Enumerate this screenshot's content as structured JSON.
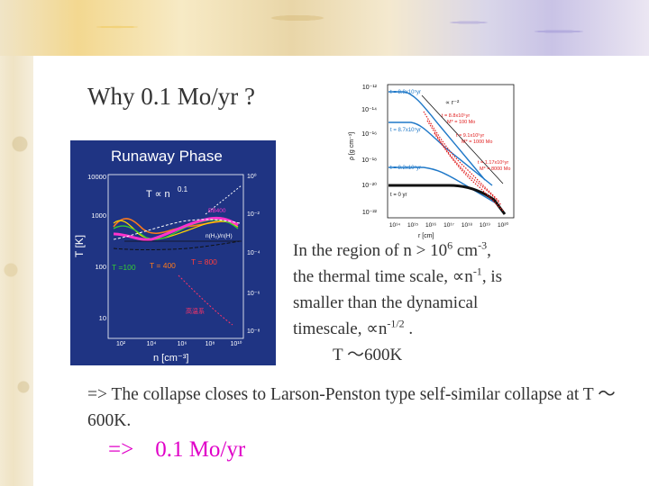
{
  "slide": {
    "title": "Why 0.1 Mo/yr ?",
    "body_lines": [
      {
        "prefix": "In the region of n > 10",
        "sup": "6",
        "suffix": " cm",
        "sup2": "-3",
        "end": ","
      },
      {
        "prefix": "the thermal time scale, ∝n",
        "sup": "-1",
        "end": ",  is"
      },
      {
        "text": "smaller than the dynamical"
      },
      {
        "prefix": "timescale, ∝n",
        "sup": "-1/2",
        "end": " ."
      },
      {
        "text": "T ～600K"
      }
    ],
    "conclusion": "=> The collapse closes to Larson-Penston type self-similar collapse at T ～600K.",
    "result_arrow": "=>",
    "result_value": "0.1 Mo/yr"
  },
  "runaway_panel": {
    "title": "Runaway Phase",
    "relation": "T ∝ n",
    "relation_exp": "0.1",
    "y_axis_label": "T  [K]",
    "x_axis_label": "n  [cm⁻³]",
    "y_ticks": [
      "10000",
      "1000",
      "100",
      "10"
    ],
    "x_ticks": [
      "10²",
      "10⁴",
      "10⁶",
      "10⁸",
      "10¹⁰"
    ],
    "right_ticks": [
      "10⁰",
      "10⁻²",
      "10⁻⁴",
      "10⁻⁶",
      "10⁻⁸"
    ],
    "labels": {
      "t100": "T =100",
      "t400": "T = 400",
      "t800": "T = 800",
      "bb400": "BB400",
      "nh2": "n(H₂)/n(H)",
      "dust": "高温系"
    },
    "colors": {
      "background": "#1f3483",
      "t100": "#33cc33",
      "t400": "#ff7a1a",
      "t800": "#ff3d3d",
      "magenta": "#ff33cc",
      "dust": "#ff3366"
    }
  },
  "density_panel": {
    "y_axis_label": "ρ [g cm⁻³]",
    "x_axis_label": "r  [cm]",
    "y_ticks": [
      "10⁻¹²",
      "10⁻¹⁴",
      "10⁻¹⁶",
      "10⁻¹⁸",
      "10⁻²⁰",
      "10⁻²²"
    ],
    "x_ticks": [
      "10¹⁴",
      "10¹⁵",
      "10¹⁶",
      "10¹⁷",
      "10¹⁸",
      "10¹⁹",
      "10²⁰"
    ],
    "slope_label": "∝ r⁻²",
    "time_labels": [
      "t = 8.8x10⁵yr",
      "t = 8.7x10⁵yr",
      "t = 8.2x10⁵yr",
      "t = 0 yr"
    ],
    "red_labels": [
      "t = 8.8x10⁵yr",
      "M* = 100 Mo",
      "t = 9.1x10⁵yr",
      "M* = 1000 Mo",
      "t = 1.17x10⁶yr",
      "M* = 8000 Mo"
    ],
    "colors": {
      "blue": "#1f78c8",
      "red": "#e01a1a",
      "black": "#111111"
    }
  }
}
